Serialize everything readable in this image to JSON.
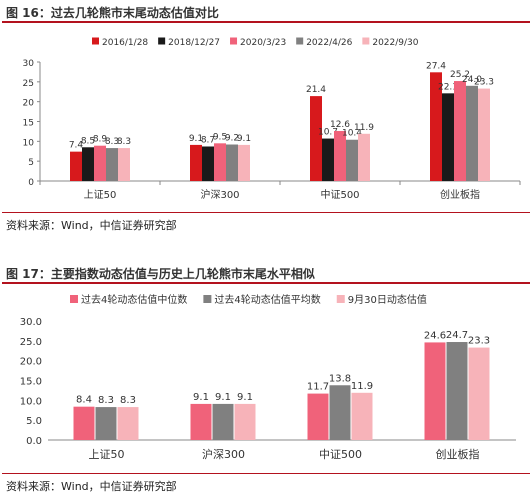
{
  "figures": [
    {
      "title": "图 16：过去几轮熊市末尾动态估值对比",
      "source": "资料来源：Wind，中信证券研究部"
    },
    {
      "title": "图 17：主要指数动态估值与历史上几轮熊市末尾水平相似",
      "source": "资料来源：Wind，中信证券研究部"
    }
  ],
  "chart_data": [
    {
      "type": "bar",
      "title": "",
      "xlabel": "",
      "ylabel": "",
      "categories": [
        "上证50",
        "沪深300",
        "中证500",
        "创业板指"
      ],
      "series": [
        {
          "name": "2016/1/28",
          "color": "#d7191c",
          "values": [
            7.4,
            9.1,
            21.4,
            27.4
          ]
        },
        {
          "name": "2018/12/27",
          "color": "#1a1a1a",
          "values": [
            8.5,
            8.7,
            10.7,
            22.1
          ]
        },
        {
          "name": "2020/3/23",
          "color": "#f0627a",
          "values": [
            8.9,
            9.5,
            12.6,
            25.2
          ]
        },
        {
          "name": "2022/4/26",
          "color": "#808080",
          "values": [
            8.3,
            9.2,
            10.4,
            24.0
          ]
        },
        {
          "name": "2022/9/30",
          "color": "#f7b3b9",
          "values": [
            8.3,
            9.1,
            11.9,
            23.3
          ]
        }
      ],
      "value_labels": [
        [
          "7.4",
          "9.1",
          "21.4",
          "27.4"
        ],
        [
          "8.5",
          "8.7",
          "10.7",
          "22.1"
        ],
        [
          "8.9",
          "9.5",
          "12.6",
          "25.2"
        ],
        [
          "8.3",
          "9.2",
          "10.4",
          "24.0"
        ],
        [
          "8.3",
          "9.1",
          "11.9",
          "23.3"
        ]
      ],
      "ylim": [
        0,
        30
      ],
      "yticks": [
        "0",
        "5",
        "10",
        "15",
        "20",
        "25",
        "30"
      ],
      "grid": false,
      "legend_position": "top"
    },
    {
      "type": "bar",
      "title": "",
      "xlabel": "",
      "ylabel": "",
      "categories": [
        "上证50",
        "沪深300",
        "中证500",
        "创业板指"
      ],
      "series": [
        {
          "name": "过去4轮动态估值中位数",
          "color": "#f0627a",
          "values": [
            8.4,
            9.1,
            11.7,
            24.6
          ]
        },
        {
          "name": "过去4轮动态估值平均数",
          "color": "#808080",
          "values": [
            8.3,
            9.1,
            13.8,
            24.7
          ]
        },
        {
          "name": "9月30日动态估值",
          "color": "#f7b3b9",
          "values": [
            8.3,
            9.1,
            11.9,
            23.3
          ]
        }
      ],
      "value_labels": [
        [
          "8.4",
          "9.1",
          "11.7",
          "24.6"
        ],
        [
          "8.3",
          "9.1",
          "13.8",
          "24.7"
        ],
        [
          "8.3",
          "9.1",
          "11.9",
          "23.3"
        ]
      ],
      "ylim": [
        0,
        30
      ],
      "yticks": [
        "0.0",
        "5.0",
        "10.0",
        "15.0",
        "20.0",
        "25.0",
        "30.0"
      ],
      "grid": false,
      "legend_position": "top"
    }
  ]
}
